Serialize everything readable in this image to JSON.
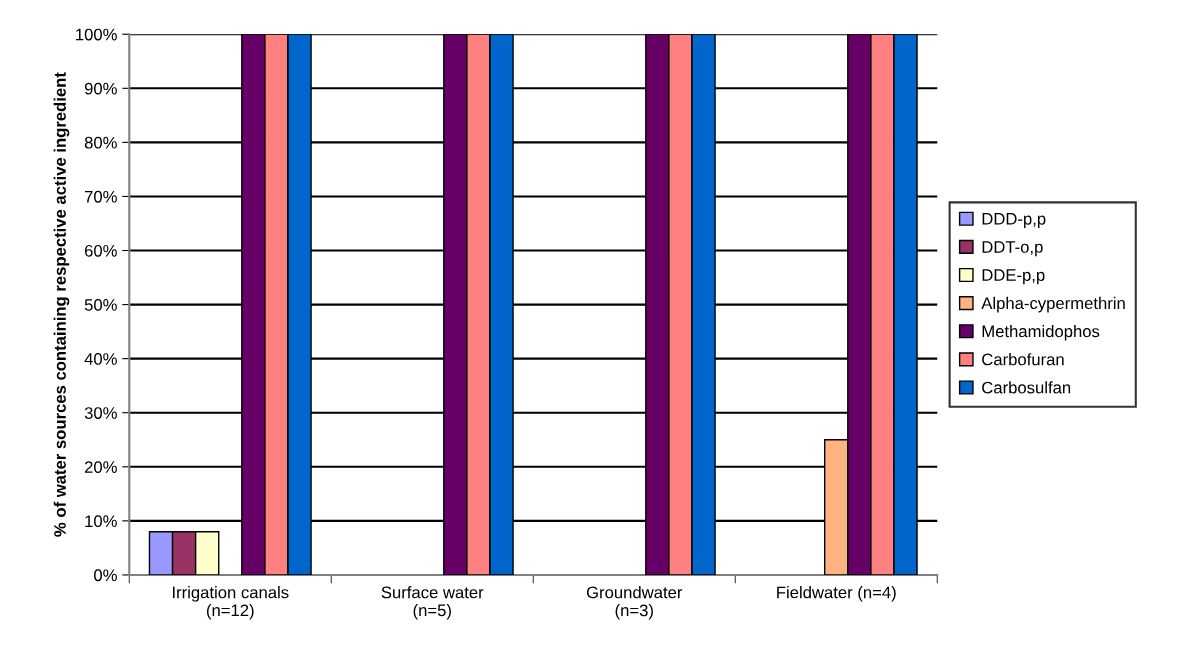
{
  "chart_data": {
    "type": "bar",
    "ylabel": "% of water sources containing respective active ingredient",
    "categories": [
      "Irrigation canals\n(n=12)",
      "Surface water\n(n=5)",
      "Groundwater\n(n=3)",
      "Fieldwater (n=4)"
    ],
    "series": [
      {
        "name": "DDD-p,p",
        "color": "#9999ff",
        "values": [
          8,
          null,
          null,
          null
        ]
      },
      {
        "name": "DDT-o,p",
        "color": "#993366",
        "values": [
          8,
          null,
          null,
          null
        ]
      },
      {
        "name": "DDE-p,p",
        "color": "#ffffcc",
        "values": [
          8,
          null,
          null,
          null
        ]
      },
      {
        "name": "Alpha-cypermethrin",
        "color": "#ffb380",
        "values": [
          null,
          null,
          null,
          25
        ]
      },
      {
        "name": "Methamidophos",
        "color": "#660066",
        "values": [
          100,
          100,
          100,
          100
        ]
      },
      {
        "name": "Carbofuran",
        "color": "#ff8080",
        "values": [
          100,
          100,
          100,
          100
        ]
      },
      {
        "name": "Carbosulfan",
        "color": "#0066cc",
        "values": [
          100,
          100,
          100,
          100
        ]
      }
    ],
    "ylim": [
      0,
      100
    ],
    "yticks": [
      {
        "value": 0,
        "label": "0%"
      },
      {
        "value": 10,
        "label": "10%"
      },
      {
        "value": 20,
        "label": "20%"
      },
      {
        "value": 30,
        "label": "30%"
      },
      {
        "value": 40,
        "label": "40%"
      },
      {
        "value": 50,
        "label": "50%"
      },
      {
        "value": 60,
        "label": "60%"
      },
      {
        "value": 70,
        "label": "70%"
      },
      {
        "value": 80,
        "label": "80%"
      },
      {
        "value": 90,
        "label": "90%"
      },
      {
        "value": 100,
        "label": "100%"
      }
    ],
    "grid": "y",
    "legend": "right"
  }
}
